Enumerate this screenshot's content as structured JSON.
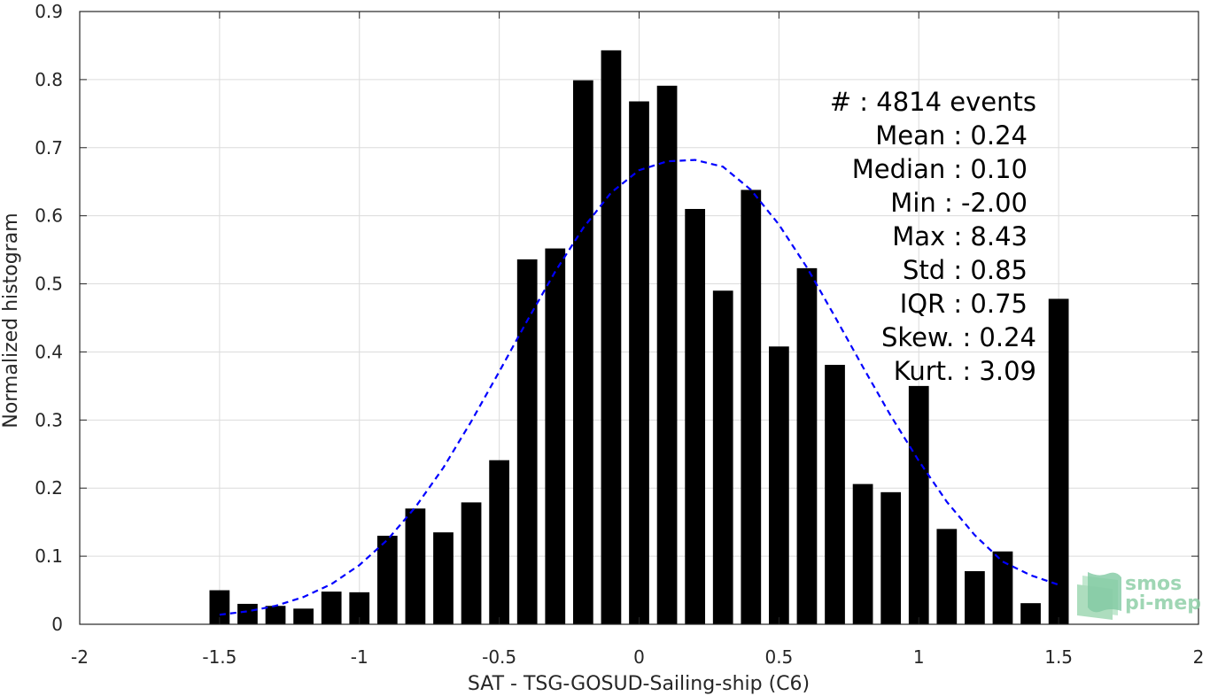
{
  "chart_data": {
    "type": "bar",
    "xlabel": "SAT - TSG-GOSUD-Sailing-ship (C6)",
    "ylabel": "Normalized histogram",
    "xlim": [
      -2,
      2
    ],
    "ylim": [
      0,
      0.9
    ],
    "xticks": [
      -2,
      -1.5,
      -1,
      -0.5,
      0,
      0.5,
      1,
      1.5,
      2
    ],
    "xtick_labels": [
      "-2",
      "-1.5",
      "-1",
      "-0.5",
      "0",
      "0.5",
      "1",
      "1.5",
      "2"
    ],
    "yticks": [
      0,
      0.1,
      0.2,
      0.3,
      0.4,
      0.5,
      0.6,
      0.7,
      0.8,
      0.9
    ],
    "ytick_labels": [
      "0",
      "0.1",
      "0.2",
      "0.3",
      "0.4",
      "0.5",
      "0.6",
      "0.7",
      "0.8",
      "0.9"
    ],
    "grid": true,
    "bar_color": "#000000",
    "curve_color": "#0000ff",
    "bins": [
      {
        "x": -1.5,
        "value": 0.05
      },
      {
        "x": -1.4,
        "value": 0.03
      },
      {
        "x": -1.3,
        "value": 0.027
      },
      {
        "x": -1.2,
        "value": 0.023
      },
      {
        "x": -1.1,
        "value": 0.048
      },
      {
        "x": -1.0,
        "value": 0.047
      },
      {
        "x": -0.9,
        "value": 0.13
      },
      {
        "x": -0.8,
        "value": 0.17
      },
      {
        "x": -0.7,
        "value": 0.135
      },
      {
        "x": -0.6,
        "value": 0.179
      },
      {
        "x": -0.5,
        "value": 0.241
      },
      {
        "x": -0.4,
        "value": 0.536
      },
      {
        "x": -0.3,
        "value": 0.552
      },
      {
        "x": -0.2,
        "value": 0.799
      },
      {
        "x": -0.1,
        "value": 0.843
      },
      {
        "x": 0.0,
        "value": 0.768
      },
      {
        "x": 0.1,
        "value": 0.791
      },
      {
        "x": 0.2,
        "value": 0.61
      },
      {
        "x": 0.3,
        "value": 0.49
      },
      {
        "x": 0.4,
        "value": 0.638
      },
      {
        "x": 0.5,
        "value": 0.408
      },
      {
        "x": 0.6,
        "value": 0.523
      },
      {
        "x": 0.7,
        "value": 0.381
      },
      {
        "x": 0.8,
        "value": 0.206
      },
      {
        "x": 0.9,
        "value": 0.194
      },
      {
        "x": 1.0,
        "value": 0.35
      },
      {
        "x": 1.1,
        "value": 0.14
      },
      {
        "x": 1.2,
        "value": 0.078
      },
      {
        "x": 1.3,
        "value": 0.107
      },
      {
        "x": 1.4,
        "value": 0.031
      },
      {
        "x": 1.5,
        "value": 0.478
      }
    ],
    "fit_curve": {
      "style": "dashed",
      "points": [
        [
          -1.5,
          0.014
        ],
        [
          -1.4,
          0.019
        ],
        [
          -1.3,
          0.027
        ],
        [
          -1.2,
          0.04
        ],
        [
          -1.1,
          0.059
        ],
        [
          -1.0,
          0.087
        ],
        [
          -0.9,
          0.124
        ],
        [
          -0.8,
          0.172
        ],
        [
          -0.7,
          0.23
        ],
        [
          -0.6,
          0.298
        ],
        [
          -0.5,
          0.371
        ],
        [
          -0.4,
          0.446
        ],
        [
          -0.3,
          0.518
        ],
        [
          -0.2,
          0.582
        ],
        [
          -0.1,
          0.634
        ],
        [
          0.0,
          0.667
        ],
        [
          0.1,
          0.68
        ],
        [
          0.2,
          0.682
        ],
        [
          0.3,
          0.672
        ],
        [
          0.4,
          0.638
        ],
        [
          0.5,
          0.587
        ],
        [
          0.6,
          0.524
        ],
        [
          0.7,
          0.452
        ],
        [
          0.8,
          0.378
        ],
        [
          0.9,
          0.306
        ],
        [
          1.0,
          0.24
        ],
        [
          1.1,
          0.18
        ],
        [
          1.2,
          0.131
        ],
        [
          1.3,
          0.092
        ],
        [
          1.4,
          0.072
        ],
        [
          1.5,
          0.058
        ]
      ]
    },
    "annotations": [
      "#  : 4814 events",
      "Mean : 0.24",
      "Median : 0.10",
      "Min : -2.00",
      "Max : 8.43",
      "Std : 0.85",
      "IQR : 0.75",
      "Skew. : 0.24",
      "Kurt. : 3.09"
    ]
  },
  "logo": {
    "line1": "smos",
    "line2": "pi-mep"
  }
}
